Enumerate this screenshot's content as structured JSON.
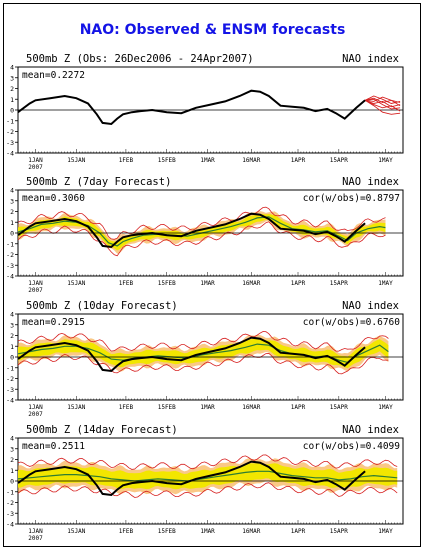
{
  "page_title": "NAO: Observed & ENSM forecasts",
  "colors": {
    "title": "#1414e6",
    "observed": "#000000",
    "ensemble_mean": "#2e7d32",
    "spread_fill": "#f2e600",
    "envelope": "#d62020",
    "shade_orange": "#f59a23"
  },
  "chart_data": [
    {
      "type": "line",
      "title": "500mb Z (Obs: 26Dec2006 - 24Apr2007)",
      "right_label": "NAO index",
      "mean_label": "mean=0.2272",
      "cor_label": "",
      "ylim": [
        -4,
        4
      ],
      "yticks": [
        "4",
        "3",
        "2",
        "1",
        "0",
        "-1",
        "-2",
        "-3",
        "-4"
      ],
      "x_tick_labels": [
        "1JAN\n2007",
        "15JAN",
        "1FEB",
        "15FEB",
        "1MAR",
        "16MAR",
        "1APR",
        "15APR",
        "1MAY"
      ],
      "x_tick_days": [
        0,
        14,
        31,
        45,
        59,
        74,
        90,
        104,
        120
      ],
      "xlim": [
        -6,
        126
      ],
      "series": [
        {
          "role": "observed",
          "x": [
            -6,
            -2,
            0,
            5,
            10,
            14,
            18,
            21,
            23,
            26,
            28,
            30,
            33,
            36,
            40,
            45,
            50,
            55,
            60,
            65,
            70,
            74,
            77,
            80,
            84,
            88,
            92,
            96,
            100,
            103,
            106,
            110,
            113
          ],
          "y": [
            -0.2,
            0.6,
            0.9,
            1.1,
            1.3,
            1.1,
            0.6,
            -0.4,
            -1.2,
            -1.3,
            -0.8,
            -0.4,
            -0.2,
            -0.1,
            0.0,
            -0.2,
            -0.3,
            0.2,
            0.5,
            0.8,
            1.3,
            1.8,
            1.7,
            1.3,
            0.4,
            0.3,
            0.2,
            -0.1,
            0.1,
            -0.3,
            -0.8,
            0.2,
            0.9
          ]
        },
        {
          "role": "forecast-members",
          "x": [
            113,
            116,
            119,
            122,
            125
          ],
          "members": [
            [
              0.9,
              1.1,
              0.7,
              0.9,
              0.4
            ],
            [
              0.9,
              0.6,
              0.8,
              0.3,
              0.5
            ],
            [
              0.9,
              1.3,
              1.0,
              0.6,
              0.8
            ],
            [
              0.9,
              0.5,
              0.2,
              0.4,
              -0.1
            ],
            [
              0.9,
              0.8,
              1.2,
              0.9,
              0.7
            ],
            [
              0.9,
              0.4,
              -0.2,
              -0.4,
              -0.3
            ],
            [
              0.9,
              1.0,
              0.5,
              0.1,
              0.2
            ]
          ]
        }
      ]
    },
    {
      "type": "line",
      "title": "500mb Z (7day Forecast)",
      "right_label": "NAO index",
      "mean_label": "mean=0.3060",
      "cor_label": "cor(w/obs)=0.8797",
      "ylim": [
        -4,
        4
      ],
      "yticks": [
        "4",
        "3",
        "2",
        "1",
        "0",
        "-1",
        "-2",
        "-3",
        "-4"
      ],
      "x_tick_labels": [
        "1JAN\n2007",
        "15JAN",
        "1FEB",
        "15FEB",
        "1MAR",
        "16MAR",
        "1APR",
        "15APR",
        "1MAY"
      ],
      "x_tick_days": [
        0,
        14,
        31,
        45,
        59,
        74,
        90,
        104,
        120
      ],
      "xlim": [
        -6,
        126
      ],
      "series": [
        {
          "role": "observed",
          "x": [
            -6,
            -2,
            0,
            5,
            10,
            14,
            18,
            21,
            23,
            26,
            28,
            30,
            33,
            36,
            40,
            45,
            50,
            55,
            60,
            65,
            70,
            74,
            77,
            80,
            84,
            88,
            92,
            96,
            100,
            103,
            106,
            110,
            113
          ],
          "y": [
            -0.2,
            0.6,
            0.9,
            1.1,
            1.3,
            1.1,
            0.6,
            -0.4,
            -1.2,
            -1.3,
            -0.8,
            -0.4,
            -0.2,
            -0.1,
            0.0,
            -0.2,
            -0.3,
            0.2,
            0.5,
            0.8,
            1.3,
            1.8,
            1.7,
            1.3,
            0.4,
            0.3,
            0.2,
            -0.1,
            0.1,
            -0.3,
            -0.8,
            0.2,
            0.9
          ]
        },
        {
          "role": "ensemble-mean",
          "x": [
            -6,
            -2,
            2,
            6,
            10,
            14,
            18,
            22,
            25,
            28,
            30,
            33,
            37,
            42,
            47,
            52,
            57,
            62,
            67,
            72,
            76,
            80,
            84,
            88,
            92,
            96,
            100,
            104,
            107,
            110,
            114,
            118,
            120
          ],
          "y": [
            0.1,
            0.4,
            0.8,
            0.9,
            1.1,
            1.0,
            0.7,
            0.0,
            -0.9,
            -1.2,
            -0.8,
            -0.5,
            -0.2,
            -0.1,
            -0.2,
            -0.3,
            0.0,
            0.3,
            0.6,
            1.0,
            1.4,
            1.5,
            0.9,
            0.4,
            0.3,
            0.1,
            0.2,
            -0.3,
            -0.7,
            0.0,
            0.4,
            0.6,
            0.5
          ]
        },
        {
          "role": "spread-half-width",
          "value": 0.35
        },
        {
          "role": "envelope-half-width",
          "value": 0.7
        }
      ]
    },
    {
      "type": "line",
      "title": "500mb Z (10day Forecast)",
      "right_label": "NAO index",
      "mean_label": "mean=0.2915",
      "cor_label": "cor(w/obs)=0.6760",
      "ylim": [
        -4,
        4
      ],
      "yticks": [
        "4",
        "3",
        "2",
        "1",
        "0",
        "-1",
        "-2",
        "-3",
        "-4"
      ],
      "x_tick_labels": [
        "1JAN\n2007",
        "15JAN",
        "1FEB",
        "15FEB",
        "1MAR",
        "16MAR",
        "1APR",
        "15APR",
        "1MAY"
      ],
      "x_tick_days": [
        0,
        14,
        31,
        45,
        59,
        74,
        90,
        104,
        120
      ],
      "xlim": [
        -6,
        126
      ],
      "series": [
        {
          "role": "observed",
          "x": [
            -6,
            -2,
            0,
            5,
            10,
            14,
            18,
            21,
            23,
            26,
            28,
            30,
            33,
            36,
            40,
            45,
            50,
            55,
            60,
            65,
            70,
            74,
            77,
            80,
            84,
            88,
            92,
            96,
            100,
            103,
            106,
            110,
            113
          ],
          "y": [
            -0.2,
            0.6,
            0.9,
            1.1,
            1.3,
            1.1,
            0.6,
            -0.4,
            -1.2,
            -1.3,
            -0.8,
            -0.4,
            -0.2,
            -0.1,
            0.0,
            -0.2,
            -0.3,
            0.2,
            0.5,
            0.8,
            1.3,
            1.8,
            1.7,
            1.3,
            0.4,
            0.3,
            0.2,
            -0.1,
            0.1,
            -0.3,
            -0.8,
            0.2,
            0.9
          ]
        },
        {
          "role": "ensemble-mean",
          "x": [
            -6,
            -2,
            2,
            6,
            10,
            14,
            18,
            22,
            26,
            30,
            34,
            38,
            42,
            47,
            52,
            57,
            62,
            67,
            72,
            76,
            80,
            84,
            88,
            92,
            96,
            100,
            104,
            107,
            110,
            114,
            118,
            121
          ],
          "y": [
            0.3,
            0.5,
            0.7,
            0.8,
            1.0,
            1.0,
            0.8,
            0.4,
            -0.2,
            -0.3,
            -0.1,
            0.0,
            0.1,
            0.0,
            -0.1,
            0.2,
            0.4,
            0.6,
            0.9,
            1.2,
            1.1,
            0.6,
            0.3,
            0.2,
            0.0,
            0.1,
            -0.3,
            -0.5,
            0.1,
            0.6,
            1.1,
            0.5
          ]
        },
        {
          "role": "spread-half-width",
          "value": 0.55
        },
        {
          "role": "envelope-half-width",
          "value": 1.0
        }
      ]
    },
    {
      "type": "line",
      "title": "500mb Z (14day Forecast)",
      "right_label": "NAO index",
      "mean_label": "mean=0.2511",
      "cor_label": "cor(w/obs)=0.4099",
      "ylim": [
        -4,
        4
      ],
      "yticks": [
        "4",
        "3",
        "2",
        "1",
        "0",
        "-1",
        "-2",
        "-3",
        "-4"
      ],
      "x_tick_labels": [
        "1JAN\n2007",
        "15JAN",
        "1FEB",
        "15FEB",
        "1MAR",
        "16MAR",
        "1APR",
        "15APR",
        "1MAY"
      ],
      "x_tick_days": [
        0,
        14,
        31,
        45,
        59,
        74,
        90,
        104,
        120
      ],
      "xlim": [
        -6,
        126
      ],
      "series": [
        {
          "role": "observed",
          "x": [
            -6,
            -2,
            0,
            5,
            10,
            14,
            18,
            21,
            23,
            26,
            28,
            30,
            33,
            36,
            40,
            45,
            50,
            55,
            60,
            65,
            70,
            74,
            77,
            80,
            84,
            88,
            92,
            96,
            100,
            103,
            106,
            110,
            113
          ],
          "y": [
            -0.2,
            0.6,
            0.9,
            1.1,
            1.3,
            1.1,
            0.6,
            -0.4,
            -1.2,
            -1.3,
            -0.8,
            -0.4,
            -0.2,
            -0.1,
            0.0,
            -0.2,
            -0.3,
            0.2,
            0.5,
            0.8,
            1.3,
            1.8,
            1.7,
            1.3,
            0.4,
            0.3,
            0.2,
            -0.1,
            0.1,
            -0.3,
            -0.8,
            0.2,
            0.9
          ]
        },
        {
          "role": "ensemble-mean",
          "x": [
            -6,
            -2,
            2,
            6,
            10,
            14,
            18,
            22,
            26,
            30,
            34,
            38,
            42,
            47,
            52,
            57,
            62,
            67,
            72,
            76,
            80,
            84,
            88,
            92,
            96,
            100,
            104,
            108,
            112,
            116,
            120,
            124
          ],
          "y": [
            0.2,
            0.3,
            0.4,
            0.5,
            0.6,
            0.6,
            0.5,
            0.4,
            0.2,
            0.1,
            0.0,
            0.1,
            0.2,
            0.1,
            0.0,
            0.2,
            0.4,
            0.6,
            0.8,
            0.9,
            0.9,
            0.7,
            0.5,
            0.4,
            0.3,
            0.3,
            0.1,
            0.2,
            0.4,
            0.5,
            0.4,
            0.3
          ]
        },
        {
          "role": "spread-half-width",
          "value": 0.75
        },
        {
          "role": "envelope-half-width",
          "value": 1.3
        }
      ]
    }
  ]
}
